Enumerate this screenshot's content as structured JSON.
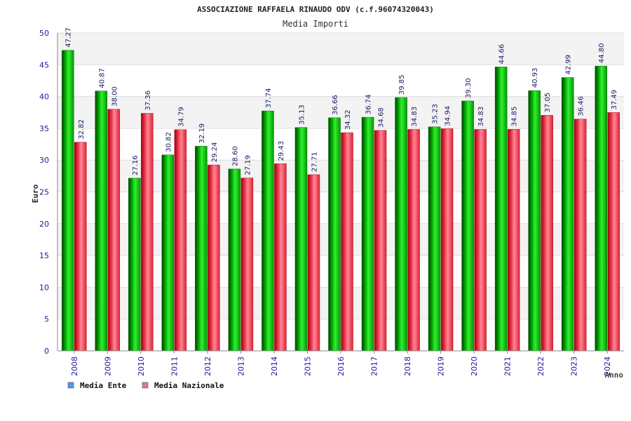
{
  "chart_data": {
    "type": "bar",
    "title": "ASSOCIAZIONE RAFFAELA RINAUDO ODV (c.f.96074320043)",
    "subtitle": "Media Importi",
    "xlabel": "Anno",
    "ylabel": "Euro",
    "ylim": [
      0,
      50
    ],
    "yticks": [
      "0",
      "5",
      "10",
      "15",
      "20",
      "25",
      "30",
      "35",
      "40",
      "45",
      "50"
    ],
    "grid": true,
    "legend_position": "bottom-left",
    "categories": [
      "2008",
      "2009",
      "2010",
      "2011",
      "2012",
      "2013",
      "2014",
      "2015",
      "2016",
      "2017",
      "2018",
      "2019",
      "2020",
      "2021",
      "2022",
      "2023",
      "2024"
    ],
    "series": [
      {
        "name": "Media Ente",
        "color": "#00aa00",
        "legend_color": "#5599ee",
        "values": [
          47.27,
          40.87,
          27.16,
          30.82,
          32.19,
          28.6,
          37.74,
          35.13,
          36.66,
          36.74,
          39.85,
          35.23,
          39.3,
          44.66,
          40.93,
          42.99,
          44.8
        ],
        "labels": [
          "47.27",
          "40.87",
          "27.16",
          "30.82",
          "32.19",
          "28.60",
          "37.74",
          "35.13",
          "36.66",
          "36.74",
          "39.85",
          "35.23",
          "39.30",
          "44.66",
          "40.93",
          "42.99",
          "44.80"
        ]
      },
      {
        "name": "Media Nazionale",
        "color": "#dd2233",
        "legend_color": "#dd77aa",
        "values": [
          32.82,
          38.0,
          37.36,
          34.79,
          29.24,
          27.19,
          29.43,
          27.71,
          34.32,
          34.68,
          34.83,
          34.94,
          34.83,
          34.85,
          37.05,
          36.46,
          37.49
        ],
        "labels": [
          "32.82",
          "38.00",
          "37.36",
          "34.79",
          "29.24",
          "27.19",
          "29.43",
          "27.71",
          "34.32",
          "34.68",
          "34.83",
          "34.94",
          "34.83",
          "34.85",
          "37.05",
          "36.46",
          "37.49"
        ]
      }
    ]
  }
}
